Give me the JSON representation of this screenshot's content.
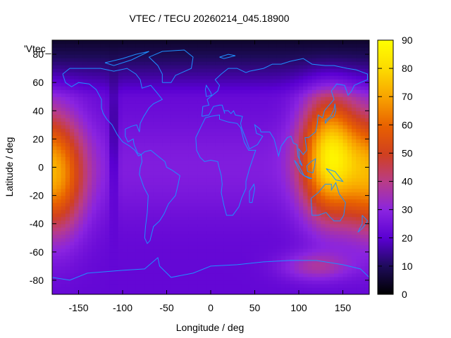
{
  "chart_data": {
    "type": "heatmap",
    "title": "VTEC / TECU 20260214_045.18900",
    "xlabel": "Longitude / deg",
    "ylabel": "Latitude / deg",
    "key_label": "'Vtec_",
    "xlim": [
      -180,
      180
    ],
    "ylim": [
      -90,
      90
    ],
    "xticks": [
      -150,
      -100,
      -50,
      0,
      50,
      100,
      150
    ],
    "yticks": [
      -80,
      -60,
      -40,
      -20,
      0,
      20,
      40,
      60,
      80
    ],
    "colorbar": {
      "range": [
        0,
        90
      ],
      "ticks": [
        0,
        10,
        20,
        30,
        40,
        50,
        60,
        70,
        80,
        90
      ]
    },
    "palette": [
      "#000000",
      "#1e0b5a",
      "#5a00d2",
      "#8a24e0",
      "#b83c8a",
      "#d04020",
      "#e86000",
      "#f8a000",
      "#fcd800",
      "#ffff00"
    ],
    "coastline_color": "#1e90ff",
    "peaks": [
      {
        "lon": 135,
        "lat": 8,
        "value": 78
      },
      {
        "lon": -175,
        "lat": -5,
        "value": 62
      }
    ],
    "features": {
      "ionospheric_trough_lon": -110,
      "polar_low_value": 3,
      "background_value": 22
    }
  }
}
